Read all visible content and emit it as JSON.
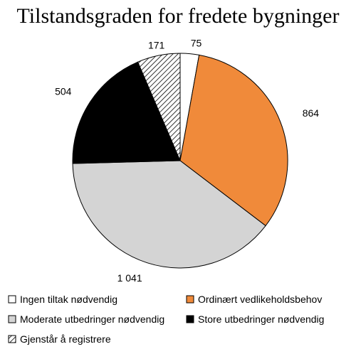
{
  "chart_data": {
    "type": "pie",
    "title": "Tilstandsgraden for fredete bygninger",
    "slices": [
      {
        "label": "Ingen tiltak nødvendig",
        "value": 75,
        "value_label": "75",
        "color": "#ffffff",
        "pattern": "none"
      },
      {
        "label": "Ordinært vedlikeholdsbehov",
        "value": 864,
        "value_label": "864",
        "color": "#f08a3a",
        "pattern": "none"
      },
      {
        "label": "Moderate utbedringer nødvendig",
        "value": 1041,
        "value_label": "1 041",
        "color": "#d4d4d4",
        "pattern": "none"
      },
      {
        "label": "Store utbedringer nødvendig",
        "value": 504,
        "value_label": "504",
        "color": "#000000",
        "pattern": "none"
      },
      {
        "label": "Gjenstår å registrere",
        "value": 171,
        "value_label": "171",
        "color": "#ffffff",
        "pattern": "diagonal-hatch"
      }
    ],
    "legend_position": "bottom"
  }
}
